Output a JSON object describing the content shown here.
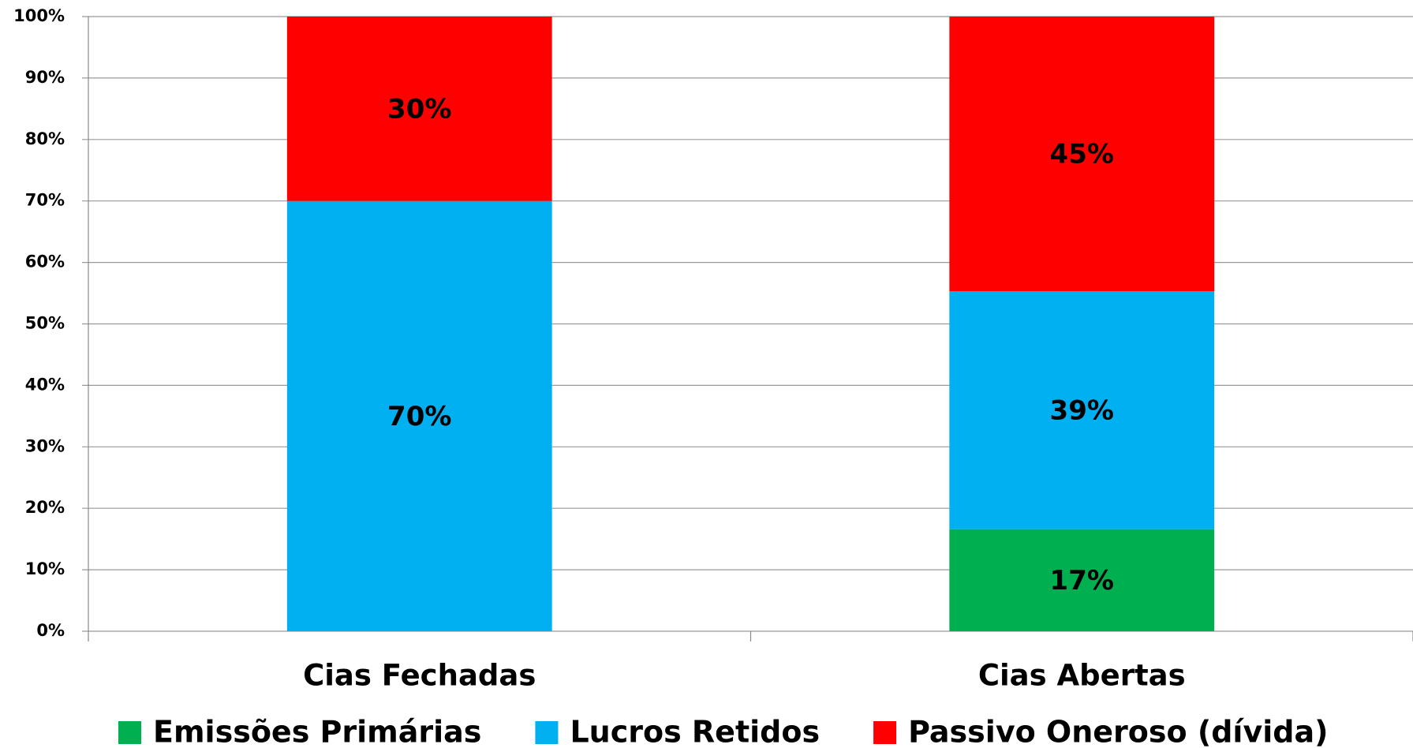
{
  "chart_data": {
    "type": "stacked-bar",
    "categories": [
      "Cias Fechadas",
      "Cias Abertas"
    ],
    "series": [
      {
        "name": "Emissões Primárias",
        "color": "#00b050",
        "values": [
          0,
          16.6
        ],
        "value_labels": [
          null,
          "17%"
        ]
      },
      {
        "name": "Lucros Retidos",
        "color": "#00b0f0",
        "values": [
          70,
          38.7
        ],
        "value_labels": [
          "70%",
          "39%"
        ]
      },
      {
        "name": "Passivo Oneroso (dívida)",
        "color": "#ff0000",
        "values": [
          30,
          44.7
        ],
        "value_labels": [
          "30%",
          "45%"
        ]
      }
    ],
    "ylim": [
      0,
      100
    ],
    "yticks": [
      {
        "value": 0,
        "label": "0%"
      },
      {
        "value": 10,
        "label": "10%"
      },
      {
        "value": 20,
        "label": "20%"
      },
      {
        "value": 30,
        "label": "30%"
      },
      {
        "value": 40,
        "label": "40%"
      },
      {
        "value": 50,
        "label": "50%"
      },
      {
        "value": 60,
        "label": "60%"
      },
      {
        "value": 70,
        "label": "70%"
      },
      {
        "value": 80,
        "label": "80%"
      },
      {
        "value": 90,
        "label": "90%"
      },
      {
        "value": 100,
        "label": "100%"
      }
    ],
    "grid": true,
    "legend": "bottom"
  }
}
